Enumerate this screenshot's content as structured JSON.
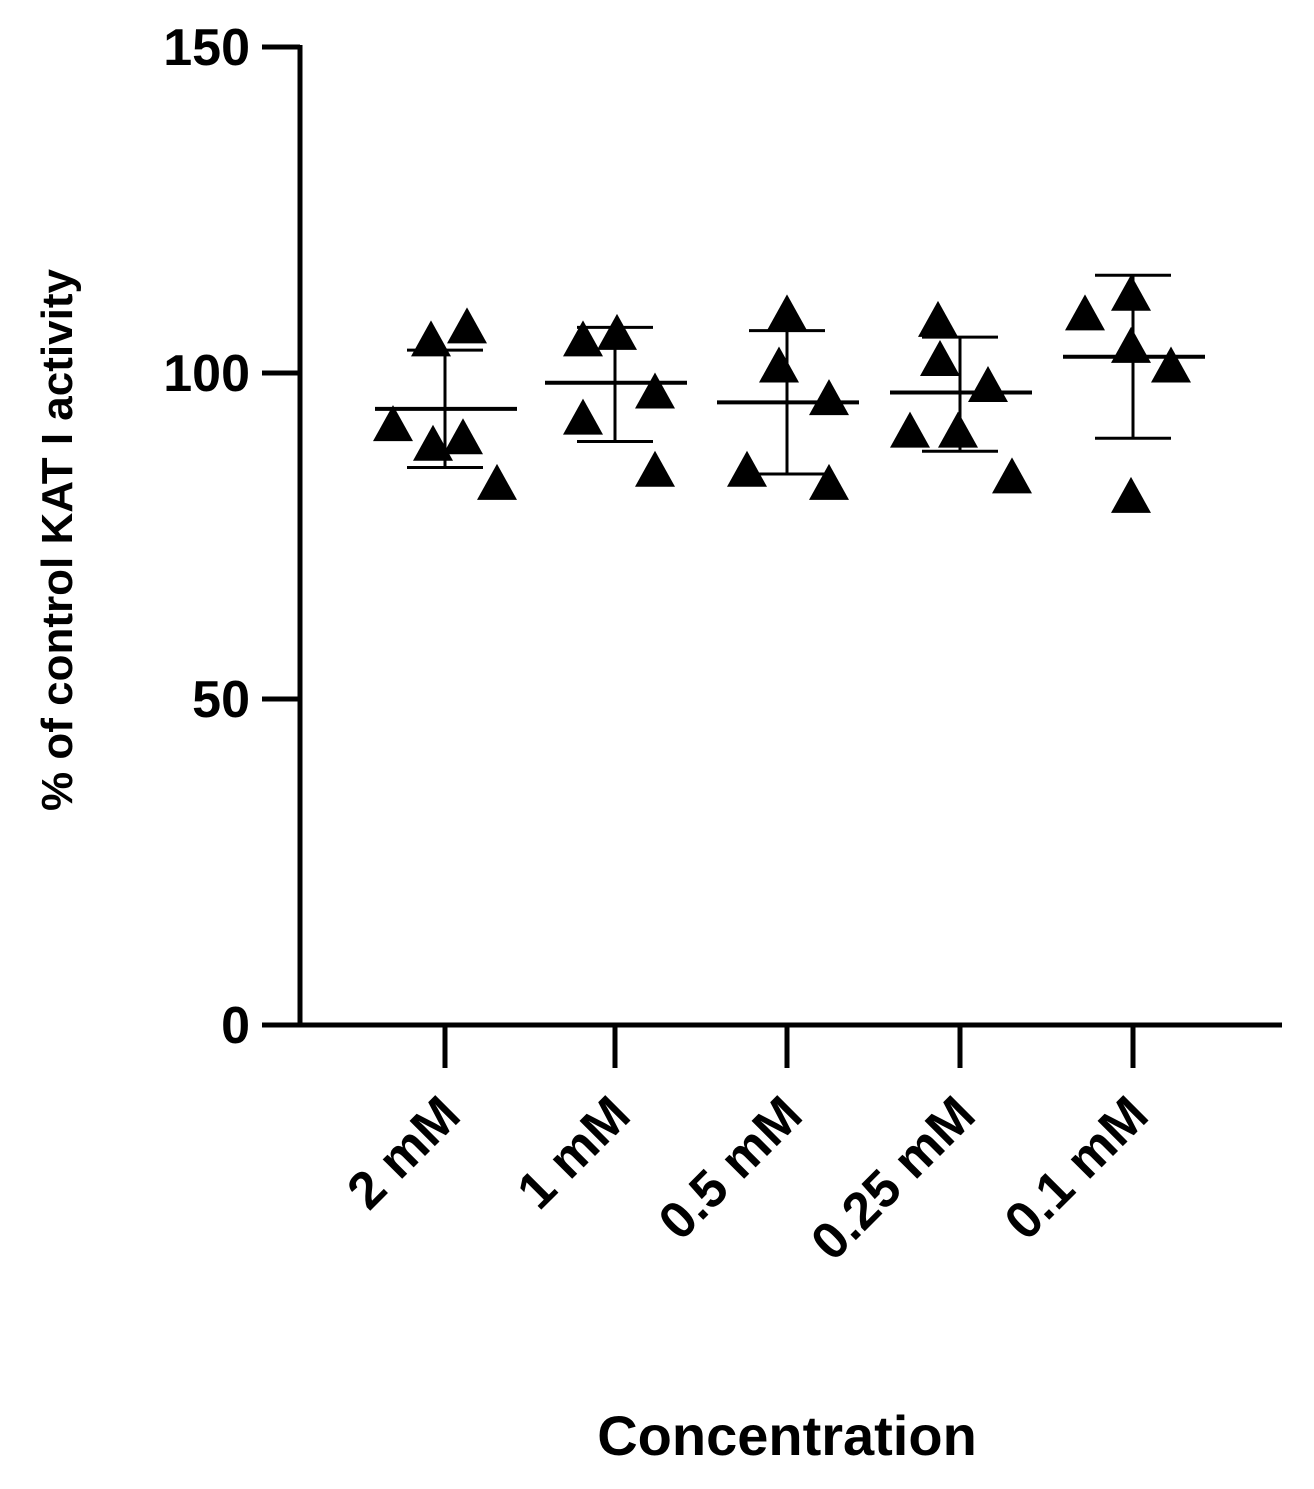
{
  "chart_data": {
    "type": "scatter",
    "title": "",
    "xlabel": "Concentration",
    "ylabel": "% of control KAT I activity",
    "ylim": [
      0,
      150
    ],
    "yticks": [
      0,
      50,
      100,
      150
    ],
    "grid": false,
    "marker": "triangle",
    "color": "#000000",
    "categories": [
      "2 mM",
      "1 mM",
      "0.5 mM",
      "0.25 mM",
      "0.1 mM"
    ],
    "groups": [
      {
        "category": "2 mM",
        "points": [
          105,
          107,
          92,
          89,
          90,
          83
        ],
        "mean": 94.5,
        "sd_upper": 103.5,
        "sd_lower": 85.5
      },
      {
        "category": "1 mM",
        "points": [
          105,
          106,
          93,
          97,
          85
        ],
        "mean": 98.5,
        "sd_upper": 107,
        "sd_lower": 89.5
      },
      {
        "category": "0.5 mM",
        "points": [
          101,
          109,
          85,
          96,
          83
        ],
        "mean": 95.5,
        "sd_upper": 106.5,
        "sd_lower": 84.5
      },
      {
        "category": "0.25 mM",
        "points": [
          108,
          102,
          91,
          91,
          98,
          84
        ],
        "mean": 97,
        "sd_upper": 105.5,
        "sd_lower": 88
      },
      {
        "category": "0.1 mM",
        "points": [
          109,
          112,
          104,
          101,
          81
        ],
        "mean": 102.5,
        "sd_upper": 115,
        "sd_lower": 90
      }
    ]
  }
}
